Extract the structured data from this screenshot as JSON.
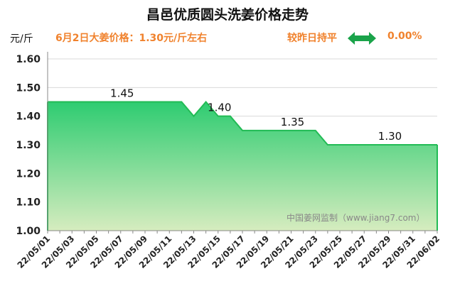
{
  "header": {
    "title": "昌邑优质圆头洗姜价格走势",
    "unit": "元/斤",
    "price_note": "6月2日大姜价格：1.30元/斤左右",
    "trend_text": "较昨日持平",
    "trend_icon": "double-arrow-icon",
    "change": "0.00%"
  },
  "colors": {
    "accent": "#f0822d",
    "area_top": "#2ecc71",
    "area_bottom": "#d6ecbf",
    "line": "#22bb55"
  },
  "chart_data": {
    "type": "area",
    "title": "昌邑优质圆头洗姜价格走势",
    "ylabel": "元/斤",
    "xlabel": "",
    "ylim": [
      1.0,
      1.6
    ],
    "yticks": [
      "1.00",
      "1.10",
      "1.20",
      "1.30",
      "1.40",
      "1.50",
      "1.60"
    ],
    "xticks": [
      "22/05/01",
      "22/05/03",
      "22/05/05",
      "22/05/07",
      "22/05/09",
      "22/05/11",
      "22/05/13",
      "22/05/15",
      "22/05/17",
      "22/05/19",
      "22/05/21",
      "22/05/23",
      "22/05/25",
      "22/05/27",
      "22/05/29",
      "22/05/31",
      "22/06/02"
    ],
    "x": [
      "22/05/01",
      "22/05/02",
      "22/05/03",
      "22/05/04",
      "22/05/05",
      "22/05/06",
      "22/05/07",
      "22/05/08",
      "22/05/09",
      "22/05/10",
      "22/05/11",
      "22/05/12",
      "22/05/13",
      "22/05/14",
      "22/05/15",
      "22/05/16",
      "22/05/17",
      "22/05/18",
      "22/05/19",
      "22/05/20",
      "22/05/21",
      "22/05/22",
      "22/05/23",
      "22/05/24",
      "22/05/25",
      "22/05/26",
      "22/05/27",
      "22/05/28",
      "22/05/29",
      "22/05/30",
      "22/05/31",
      "22/06/01",
      "22/06/02"
    ],
    "values": [
      1.45,
      1.45,
      1.45,
      1.45,
      1.45,
      1.45,
      1.45,
      1.45,
      1.45,
      1.45,
      1.45,
      1.45,
      1.4,
      1.45,
      1.4,
      1.4,
      1.35,
      1.35,
      1.35,
      1.35,
      1.35,
      1.35,
      1.35,
      1.3,
      1.3,
      1.3,
      1.3,
      1.3,
      1.3,
      1.3,
      1.3,
      1.3,
      1.3
    ],
    "data_labels": [
      {
        "index": 6,
        "text": "1.45"
      },
      {
        "index": 14,
        "text": "1.40"
      },
      {
        "index": 20,
        "text": "1.35"
      },
      {
        "index": 28,
        "text": "1.30"
      }
    ],
    "grid": true,
    "legend": "none",
    "annotation": "中国姜网监制（www.jiang7.com）"
  }
}
